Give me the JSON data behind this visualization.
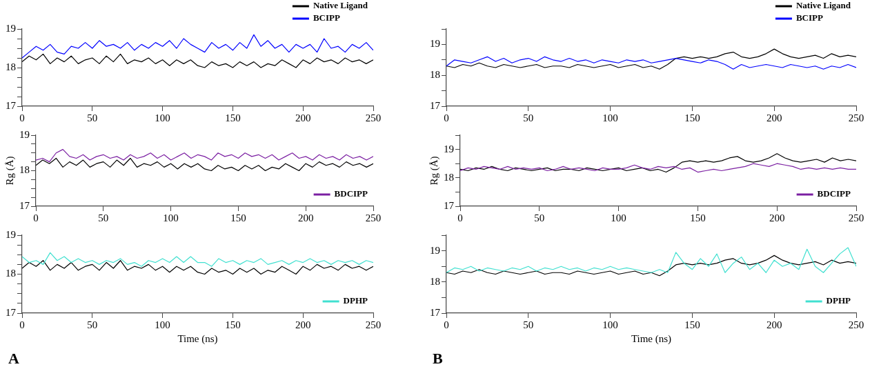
{
  "chart_data": [
    {
      "type": "line",
      "x": [
        0,
        5,
        10,
        15,
        20,
        25,
        30,
        35,
        40,
        45,
        50,
        55,
        60,
        65,
        70,
        75,
        80,
        85,
        90,
        95,
        100,
        105,
        110,
        115,
        120,
        125,
        130,
        135,
        140,
        145,
        150,
        155,
        160,
        165,
        170,
        175,
        180,
        185,
        190,
        195,
        200,
        205,
        210,
        215,
        220,
        225,
        230,
        235,
        240,
        245,
        250
      ],
      "xlim": [
        0,
        250
      ],
      "xticks": [
        0,
        50,
        100,
        150,
        200,
        250
      ],
      "ylim": [
        17,
        19
      ],
      "yticks": [
        17,
        {
          "value": 17.25,
          "label": null
        },
        {
          "value": 17.5,
          "label": null
        },
        {
          "value": 17.75,
          "label": null
        },
        18,
        {
          "value": 18.25,
          "label": null
        },
        {
          "value": 18.5,
          "label": null
        },
        {
          "value": 18.75,
          "label": null
        },
        19
      ],
      "legend": "top right",
      "series": [
        {
          "name": "Native Ligand",
          "color": "#000000",
          "values": [
            18.15,
            18.3,
            18.2,
            18.35,
            18.1,
            18.25,
            18.15,
            18.3,
            18.1,
            18.2,
            18.25,
            18.1,
            18.3,
            18.15,
            18.35,
            18.1,
            18.2,
            18.15,
            18.25,
            18.1,
            18.2,
            18.05,
            18.2,
            18.1,
            18.2,
            18.05,
            18.0,
            18.15,
            18.05,
            18.1,
            18.0,
            18.15,
            18.05,
            18.15,
            18.0,
            18.1,
            18.05,
            18.2,
            18.1,
            18.0,
            18.2,
            18.1,
            18.25,
            18.15,
            18.2,
            18.1,
            18.25,
            18.15,
            18.2,
            18.1,
            18.2
          ]
        },
        {
          "name": "BCIPP",
          "color": "#0000ff",
          "values": [
            18.25,
            18.4,
            18.55,
            18.45,
            18.6,
            18.4,
            18.35,
            18.55,
            18.5,
            18.65,
            18.5,
            18.7,
            18.55,
            18.6,
            18.5,
            18.65,
            18.45,
            18.6,
            18.5,
            18.65,
            18.55,
            18.7,
            18.5,
            18.75,
            18.6,
            18.5,
            18.4,
            18.65,
            18.5,
            18.6,
            18.45,
            18.65,
            18.5,
            18.85,
            18.55,
            18.7,
            18.5,
            18.6,
            18.4,
            18.6,
            18.5,
            18.6,
            18.4,
            18.75,
            18.5,
            18.55,
            18.4,
            18.6,
            18.5,
            18.65,
            18.45
          ]
        }
      ]
    },
    {
      "type": "line",
      "x": [
        0,
        5,
        10,
        15,
        20,
        25,
        30,
        35,
        40,
        45,
        50,
        55,
        60,
        65,
        70,
        75,
        80,
        85,
        90,
        95,
        100,
        105,
        110,
        115,
        120,
        125,
        130,
        135,
        140,
        145,
        150,
        155,
        160,
        165,
        170,
        175,
        180,
        185,
        190,
        195,
        200,
        205,
        210,
        215,
        220,
        225,
        230,
        235,
        240,
        245,
        250
      ],
      "xlim": [
        0,
        250
      ],
      "xticks": [
        0,
        50,
        100,
        150,
        200,
        250
      ],
      "ylim": [
        17,
        19
      ],
      "yticks": [
        17,
        {
          "value": 17.25,
          "label": null
        },
        {
          "value": 17.5,
          "label": null
        },
        {
          "value": 17.75,
          "label": null
        },
        18,
        {
          "value": 18.25,
          "label": null
        },
        {
          "value": 18.5,
          "label": null
        },
        {
          "value": 18.75,
          "label": null
        },
        19
      ],
      "ylabel": "Rg (Å)",
      "legend": "bottom right",
      "series": [
        {
          "color": "#000000",
          "values": [
            18.15,
            18.3,
            18.2,
            18.35,
            18.1,
            18.25,
            18.15,
            18.3,
            18.1,
            18.2,
            18.25,
            18.1,
            18.3,
            18.15,
            18.35,
            18.1,
            18.2,
            18.15,
            18.25,
            18.1,
            18.2,
            18.05,
            18.2,
            18.1,
            18.2,
            18.05,
            18.0,
            18.15,
            18.05,
            18.1,
            18.0,
            18.15,
            18.05,
            18.15,
            18.0,
            18.1,
            18.05,
            18.2,
            18.1,
            18.0,
            18.2,
            18.1,
            18.25,
            18.15,
            18.2,
            18.1,
            18.25,
            18.15,
            18.2,
            18.1,
            18.2
          ]
        },
        {
          "name": "BDCIPP",
          "color": "#7b1fa2",
          "values": [
            18.3,
            18.35,
            18.25,
            18.5,
            18.6,
            18.4,
            18.35,
            18.45,
            18.3,
            18.4,
            18.45,
            18.35,
            18.4,
            18.3,
            18.45,
            18.35,
            18.4,
            18.5,
            18.35,
            18.45,
            18.3,
            18.4,
            18.5,
            18.35,
            18.45,
            18.4,
            18.3,
            18.5,
            18.4,
            18.45,
            18.35,
            18.5,
            18.4,
            18.45,
            18.35,
            18.45,
            18.3,
            18.4,
            18.5,
            18.35,
            18.4,
            18.3,
            18.45,
            18.35,
            18.4,
            18.3,
            18.45,
            18.35,
            18.4,
            18.3,
            18.4
          ]
        }
      ]
    },
    {
      "type": "line",
      "x": [
        0,
        5,
        10,
        15,
        20,
        25,
        30,
        35,
        40,
        45,
        50,
        55,
        60,
        65,
        70,
        75,
        80,
        85,
        90,
        95,
        100,
        105,
        110,
        115,
        120,
        125,
        130,
        135,
        140,
        145,
        150,
        155,
        160,
        165,
        170,
        175,
        180,
        185,
        190,
        195,
        200,
        205,
        210,
        215,
        220,
        225,
        230,
        235,
        240,
        245,
        250
      ],
      "xlim": [
        0,
        250
      ],
      "xticks": [
        0,
        50,
        100,
        150,
        200,
        250
      ],
      "ylim": [
        17,
        19
      ],
      "yticks": [
        17,
        {
          "value": 17.25,
          "label": null
        },
        {
          "value": 17.5,
          "label": null
        },
        {
          "value": 17.75,
          "label": null
        },
        18,
        {
          "value": 18.25,
          "label": null
        },
        {
          "value": 18.5,
          "label": null
        },
        {
          "value": 18.75,
          "label": null
        },
        19
      ],
      "xlabel": "Time (ns)",
      "legend": "bottom right",
      "annotations": [
        "A"
      ],
      "series": [
        {
          "color": "#000000",
          "values": [
            18.15,
            18.3,
            18.2,
            18.35,
            18.1,
            18.25,
            18.15,
            18.3,
            18.1,
            18.2,
            18.25,
            18.1,
            18.3,
            18.15,
            18.35,
            18.1,
            18.2,
            18.15,
            18.25,
            18.1,
            18.2,
            18.05,
            18.2,
            18.1,
            18.2,
            18.05,
            18.0,
            18.15,
            18.05,
            18.1,
            18.0,
            18.15,
            18.05,
            18.15,
            18.0,
            18.1,
            18.05,
            18.2,
            18.1,
            18.0,
            18.2,
            18.1,
            18.25,
            18.15,
            18.2,
            18.1,
            18.25,
            18.15,
            18.2,
            18.1,
            18.2
          ]
        },
        {
          "name": "DPHP",
          "color": "#40e0d0",
          "values": [
            18.45,
            18.3,
            18.35,
            18.25,
            18.55,
            18.35,
            18.45,
            18.3,
            18.4,
            18.3,
            18.35,
            18.25,
            18.35,
            18.3,
            18.4,
            18.25,
            18.3,
            18.2,
            18.35,
            18.3,
            18.4,
            18.3,
            18.45,
            18.3,
            18.45,
            18.3,
            18.3,
            18.2,
            18.4,
            18.3,
            18.35,
            18.25,
            18.35,
            18.3,
            18.4,
            18.25,
            18.3,
            18.35,
            18.25,
            18.35,
            18.3,
            18.4,
            18.3,
            18.35,
            18.25,
            18.35,
            18.3,
            18.35,
            18.25,
            18.35,
            18.3
          ]
        }
      ]
    },
    {
      "type": "line",
      "x": [
        0,
        5,
        10,
        15,
        20,
        25,
        30,
        35,
        40,
        45,
        50,
        55,
        60,
        65,
        70,
        75,
        80,
        85,
        90,
        95,
        100,
        105,
        110,
        115,
        120,
        125,
        130,
        135,
        140,
        145,
        150,
        155,
        160,
        165,
        170,
        175,
        180,
        185,
        190,
        195,
        200,
        205,
        210,
        215,
        220,
        225,
        230,
        235,
        240,
        245,
        250
      ],
      "xlim": [
        0,
        250
      ],
      "xticks": [
        0,
        50,
        100,
        150,
        200,
        250
      ],
      "ylim": [
        17,
        19.5
      ],
      "yticks": [
        17,
        {
          "value": 17.5,
          "label": null
        },
        18,
        {
          "value": 18.5,
          "label": null
        },
        19,
        {
          "value": 19.5,
          "label": null
        }
      ],
      "legend": "top right",
      "series": [
        {
          "name": "Native Ligand",
          "color": "#000000",
          "values": [
            18.3,
            18.25,
            18.35,
            18.3,
            18.4,
            18.3,
            18.25,
            18.35,
            18.3,
            18.25,
            18.3,
            18.35,
            18.25,
            18.3,
            18.3,
            18.25,
            18.35,
            18.3,
            18.25,
            18.3,
            18.35,
            18.25,
            18.3,
            18.35,
            18.25,
            18.3,
            18.2,
            18.35,
            18.55,
            18.6,
            18.55,
            18.6,
            18.55,
            18.6,
            18.7,
            18.75,
            18.6,
            18.55,
            18.6,
            18.7,
            18.85,
            18.7,
            18.6,
            18.55,
            18.6,
            18.65,
            18.55,
            18.7,
            18.6,
            18.65,
            18.6
          ]
        },
        {
          "name": "BCIPP",
          "color": "#0000ff",
          "values": [
            18.3,
            18.5,
            18.45,
            18.4,
            18.5,
            18.6,
            18.45,
            18.55,
            18.4,
            18.5,
            18.55,
            18.45,
            18.6,
            18.5,
            18.45,
            18.55,
            18.45,
            18.5,
            18.4,
            18.5,
            18.45,
            18.4,
            18.5,
            18.45,
            18.5,
            18.4,
            18.45,
            18.5,
            18.55,
            18.5,
            18.45,
            18.4,
            18.5,
            18.45,
            18.35,
            18.2,
            18.35,
            18.25,
            18.3,
            18.35,
            18.3,
            18.25,
            18.35,
            18.3,
            18.25,
            18.3,
            18.2,
            18.3,
            18.25,
            18.35,
            18.25
          ]
        }
      ]
    },
    {
      "type": "line",
      "x": [
        0,
        5,
        10,
        15,
        20,
        25,
        30,
        35,
        40,
        45,
        50,
        55,
        60,
        65,
        70,
        75,
        80,
        85,
        90,
        95,
        100,
        105,
        110,
        115,
        120,
        125,
        130,
        135,
        140,
        145,
        150,
        155,
        160,
        165,
        170,
        175,
        180,
        185,
        190,
        195,
        200,
        205,
        210,
        215,
        220,
        225,
        230,
        235,
        240,
        245,
        250
      ],
      "xlim": [
        0,
        250
      ],
      "xticks": [
        0,
        50,
        100,
        150,
        200,
        250
      ],
      "ylim": [
        17,
        19.5
      ],
      "yticks": [
        17,
        {
          "value": 17.5,
          "label": null
        },
        18,
        {
          "value": 18.5,
          "label": null
        },
        19,
        {
          "value": 19.5,
          "label": null
        }
      ],
      "ylabel": "Rg (Å)",
      "legend": "bottom right",
      "series": [
        {
          "color": "#000000",
          "values": [
            18.3,
            18.25,
            18.35,
            18.3,
            18.4,
            18.3,
            18.25,
            18.35,
            18.3,
            18.25,
            18.3,
            18.35,
            18.25,
            18.3,
            18.3,
            18.25,
            18.35,
            18.3,
            18.25,
            18.3,
            18.35,
            18.25,
            18.3,
            18.35,
            18.25,
            18.3,
            18.2,
            18.35,
            18.55,
            18.6,
            18.55,
            18.6,
            18.55,
            18.6,
            18.7,
            18.75,
            18.6,
            18.55,
            18.6,
            18.7,
            18.85,
            18.7,
            18.6,
            18.55,
            18.6,
            18.65,
            18.55,
            18.7,
            18.6,
            18.65,
            18.6
          ]
        },
        {
          "name": "BDCIPP",
          "color": "#7b1fa2",
          "values": [
            18.25,
            18.35,
            18.3,
            18.4,
            18.35,
            18.3,
            18.4,
            18.3,
            18.35,
            18.3,
            18.35,
            18.25,
            18.3,
            18.4,
            18.3,
            18.35,
            18.3,
            18.25,
            18.35,
            18.3,
            18.3,
            18.35,
            18.45,
            18.35,
            18.3,
            18.4,
            18.35,
            18.4,
            18.3,
            18.35,
            18.2,
            18.25,
            18.3,
            18.25,
            18.3,
            18.35,
            18.4,
            18.5,
            18.45,
            18.4,
            18.5,
            18.45,
            18.4,
            18.3,
            18.35,
            18.3,
            18.35,
            18.3,
            18.35,
            18.3,
            18.3
          ]
        }
      ]
    },
    {
      "type": "line",
      "x": [
        0,
        5,
        10,
        15,
        20,
        25,
        30,
        35,
        40,
        45,
        50,
        55,
        60,
        65,
        70,
        75,
        80,
        85,
        90,
        95,
        100,
        105,
        110,
        115,
        120,
        125,
        130,
        135,
        140,
        145,
        150,
        155,
        160,
        165,
        170,
        175,
        180,
        185,
        190,
        195,
        200,
        205,
        210,
        215,
        220,
        225,
        230,
        235,
        240,
        245,
        250
      ],
      "xlim": [
        0,
        250
      ],
      "xticks": [
        0,
        50,
        100,
        150,
        200,
        250
      ],
      "ylim": [
        17,
        19.5
      ],
      "yticks": [
        17,
        {
          "value": 17.5,
          "label": null
        },
        18,
        {
          "value": 18.5,
          "label": null
        },
        19,
        {
          "value": 19.5,
          "label": null
        }
      ],
      "xlabel": "Time (ns)",
      "legend": "bottom right",
      "annotations": [
        "B"
      ],
      "series": [
        {
          "color": "#000000",
          "values": [
            18.3,
            18.25,
            18.35,
            18.3,
            18.4,
            18.3,
            18.25,
            18.35,
            18.3,
            18.25,
            18.3,
            18.35,
            18.25,
            18.3,
            18.3,
            18.25,
            18.35,
            18.3,
            18.25,
            18.3,
            18.35,
            18.25,
            18.3,
            18.35,
            18.25,
            18.3,
            18.2,
            18.35,
            18.55,
            18.6,
            18.55,
            18.6,
            18.55,
            18.6,
            18.7,
            18.75,
            18.6,
            18.55,
            18.6,
            18.7,
            18.85,
            18.7,
            18.6,
            18.55,
            18.6,
            18.65,
            18.55,
            18.7,
            18.6,
            18.65,
            18.6
          ]
        },
        {
          "name": "DPHP",
          "color": "#40e0d0",
          "values": [
            18.3,
            18.45,
            18.4,
            18.5,
            18.35,
            18.45,
            18.4,
            18.35,
            18.45,
            18.4,
            18.5,
            18.35,
            18.45,
            18.4,
            18.5,
            18.4,
            18.45,
            18.35,
            18.45,
            18.4,
            18.5,
            18.4,
            18.45,
            18.4,
            18.35,
            18.3,
            18.4,
            18.3,
            18.95,
            18.6,
            18.4,
            18.75,
            18.5,
            18.9,
            18.3,
            18.6,
            18.8,
            18.4,
            18.6,
            18.3,
            18.7,
            18.5,
            18.6,
            18.4,
            19.05,
            18.5,
            18.3,
            18.6,
            18.9,
            19.1,
            18.5
          ]
        }
      ]
    }
  ]
}
